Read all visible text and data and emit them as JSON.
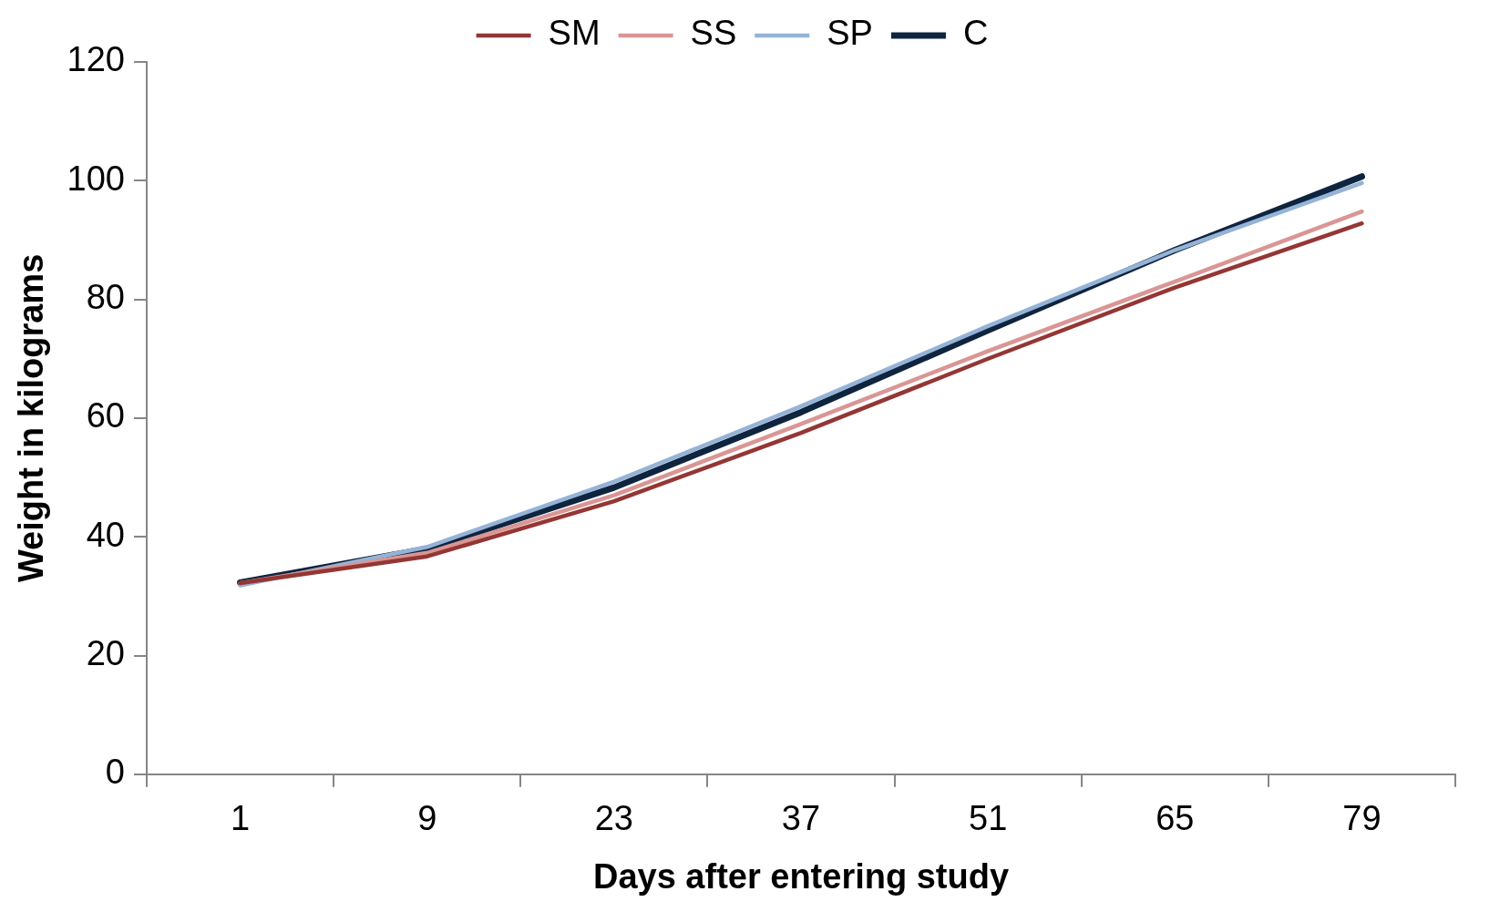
{
  "chart_data": {
    "type": "line",
    "xlabel": "Days after entering study",
    "ylabel": "Weight in kilograms",
    "categories": [
      "1",
      "9",
      "23",
      "37",
      "51",
      "65",
      "79"
    ],
    "series": [
      {
        "name": "SM",
        "color": "#943634",
        "values": [
          32.2,
          36.7,
          46,
          57.5,
          70,
          82,
          92.8
        ]
      },
      {
        "name": "SS",
        "color": "#d99694",
        "values": [
          32.2,
          37.3,
          47,
          59,
          71.3,
          83,
          94.8
        ]
      },
      {
        "name": "SP",
        "color": "#95b3d7",
        "values": [
          31.8,
          38.3,
          49.3,
          62,
          75.5,
          88.3,
          99.6
        ]
      },
      {
        "name": "C",
        "color": "#0f243e",
        "values": [
          32.3,
          38,
          48.3,
          61,
          74.8,
          88.3,
          100.7
        ]
      }
    ],
    "ylim": [
      0,
      120
    ],
    "yticks": [
      0,
      20,
      40,
      60,
      80,
      100,
      120
    ],
    "grid": false,
    "legend": "top",
    "marker": "none",
    "line_style": "solid"
  }
}
